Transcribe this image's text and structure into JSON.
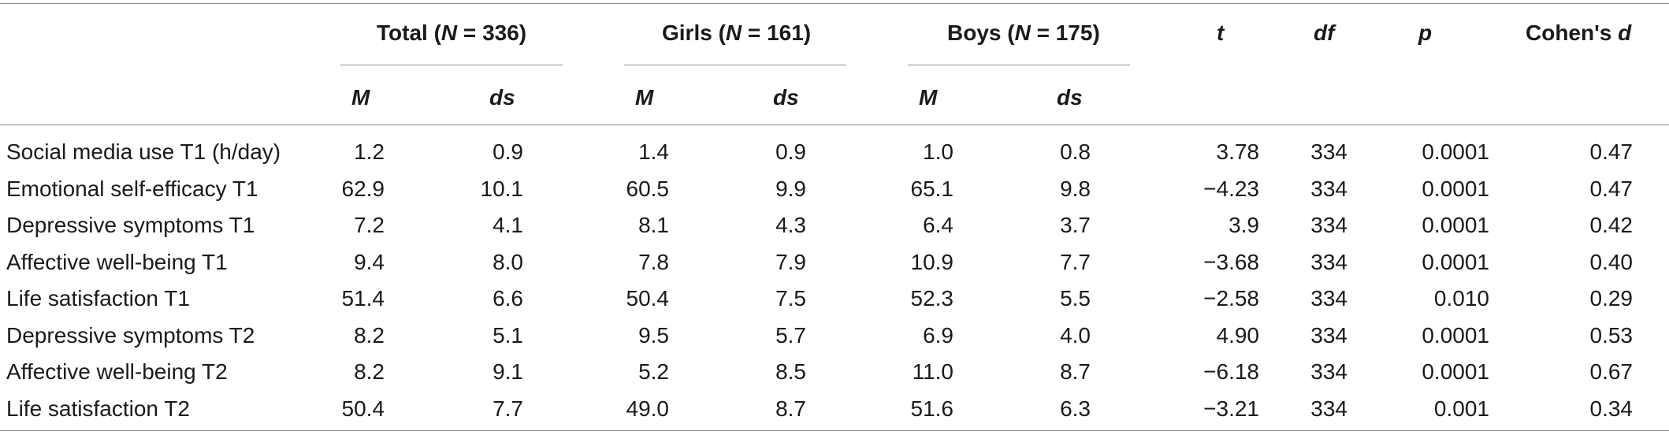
{
  "table": {
    "groups": [
      {
        "label": "Total (",
        "n_italic": "N",
        "n_value": " = 336)"
      },
      {
        "label": "Girls (",
        "n_italic": "N",
        "n_value": " = 161)"
      },
      {
        "label": "Boys (",
        "n_italic": "N",
        "n_value": " = 175)"
      }
    ],
    "stat_headers": {
      "t": "t",
      "df": "df",
      "p": "p",
      "cohens_prefix": "Cohen's ",
      "cohens_d": "d"
    },
    "sub_headers": {
      "m": "M",
      "ds": "ds"
    },
    "rows": [
      {
        "label": "Social media use T1 (h/day)",
        "total_m": "1.2",
        "total_ds": "0.9",
        "girls_m": "1.4",
        "girls_ds": "0.9",
        "boys_m": "1.0",
        "boys_ds": "0.8",
        "t": "3.78",
        "df": "334",
        "p": "0.0001",
        "d": "0.47"
      },
      {
        "label": "Emotional self-efficacy T1",
        "total_m": "62.9",
        "total_ds": "10.1",
        "girls_m": "60.5",
        "girls_ds": "9.9",
        "boys_m": "65.1",
        "boys_ds": "9.8",
        "t": "−4.23",
        "df": "334",
        "p": "0.0001",
        "d": "0.47"
      },
      {
        "label": "Depressive symptoms T1",
        "total_m": "7.2",
        "total_ds": "4.1",
        "girls_m": "8.1",
        "girls_ds": "4.3",
        "boys_m": "6.4",
        "boys_ds": "3.7",
        "t": "3.9",
        "df": "334",
        "p": "0.0001",
        "d": "0.42"
      },
      {
        "label": "Affective well-being T1",
        "total_m": "9.4",
        "total_ds": "8.0",
        "girls_m": "7.8",
        "girls_ds": "7.9",
        "boys_m": "10.9",
        "boys_ds": "7.7",
        "t": "−3.68",
        "df": "334",
        "p": "0.0001",
        "d": "0.40"
      },
      {
        "label": "Life satisfaction T1",
        "total_m": "51.4",
        "total_ds": "6.6",
        "girls_m": "50.4",
        "girls_ds": "7.5",
        "boys_m": "52.3",
        "boys_ds": "5.5",
        "t": "−2.58",
        "df": "334",
        "p": "0.010",
        "d": "0.29"
      },
      {
        "label": "Depressive symptoms T2",
        "total_m": "8.2",
        "total_ds": "5.1",
        "girls_m": "9.5",
        "girls_ds": "5.7",
        "boys_m": "6.9",
        "boys_ds": "4.0",
        "t": "4.90",
        "df": "334",
        "p": "0.0001",
        "d": "0.53"
      },
      {
        "label": "Affective well-being T2",
        "total_m": "8.2",
        "total_ds": "9.1",
        "girls_m": "5.2",
        "girls_ds": "8.5",
        "boys_m": "11.0",
        "boys_ds": "8.7",
        "t": "−6.18",
        "df": "334",
        "p": "0.0001",
        "d": "0.67"
      },
      {
        "label": "Life satisfaction T2",
        "total_m": "50.4",
        "total_ds": "7.7",
        "girls_m": "49.0",
        "girls_ds": "8.7",
        "boys_m": "51.6",
        "boys_ds": "6.3",
        "t": "−3.21",
        "df": "334",
        "p": "0.001",
        "d": "0.34"
      }
    ]
  }
}
